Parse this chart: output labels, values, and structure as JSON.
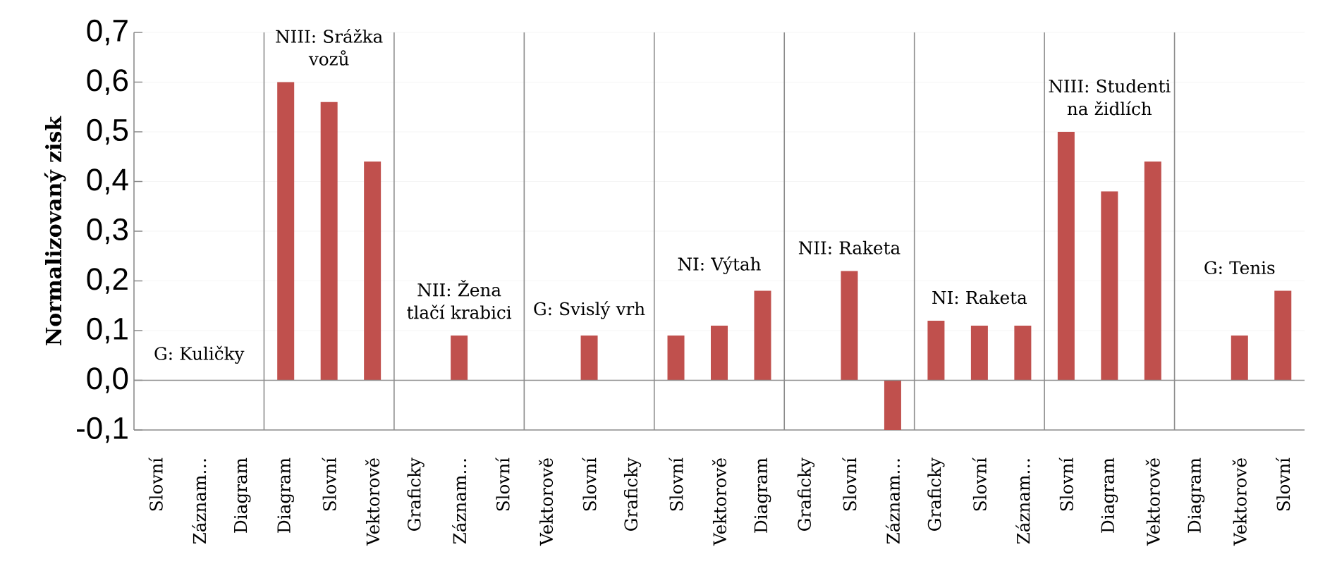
{
  "chart_data": {
    "type": "bar",
    "ylabel": "Normalizovaný zisk",
    "categories": [
      "Slovní",
      "Záznam…",
      "Diagram",
      "Diagram",
      "Slovní",
      "Vektorově",
      "Graficky",
      "Záznam…",
      "Slovní",
      "Vektorově",
      "Slovní",
      "Graficky",
      "Slovní",
      "Vektorově",
      "Diagram",
      "Graficky",
      "Slovní",
      "Záznam…",
      "Graficky",
      "Slovní",
      "Záznam…",
      "Slovní",
      "Diagram",
      "Vektorově",
      "Diagram",
      "Vektorově",
      "Slovní"
    ],
    "values": [
      0,
      0,
      0,
      0.6,
      0.56,
      0.44,
      0,
      0.09,
      0,
      0,
      0.09,
      0,
      0.09,
      0.11,
      0.18,
      0,
      0.22,
      -0.1,
      0.12,
      0.11,
      0.11,
      0.5,
      0.38,
      0.44,
      0,
      0.09,
      0.18
    ],
    "color": "#c0504d",
    "ylim": [
      -0.1,
      0.7
    ],
    "yticks": [
      {
        "value": -0.1,
        "label": "-0,1"
      },
      {
        "value": 0,
        "label": "0,0"
      },
      {
        "value": 0.1,
        "label": "0,1"
      },
      {
        "value": 0.2,
        "label": "0,2"
      },
      {
        "value": 0.3,
        "label": "0,3"
      },
      {
        "value": 0.4,
        "label": "0,4"
      },
      {
        "value": 0.5,
        "label": "0,5"
      },
      {
        "value": 0.6,
        "label": "0,6"
      },
      {
        "value": 0.7,
        "label": "0,7"
      }
    ],
    "grid": "y",
    "annotations": [
      "G: Kuličky",
      "NIII: Srážka vozů",
      "NII: Žena tlačí krabici",
      "G: Svislý vrh",
      "NI: Výtah",
      "NII: Raketa",
      "NI: Raketa",
      "NIII: Studenti na židlích",
      "G: Tenis"
    ]
  }
}
